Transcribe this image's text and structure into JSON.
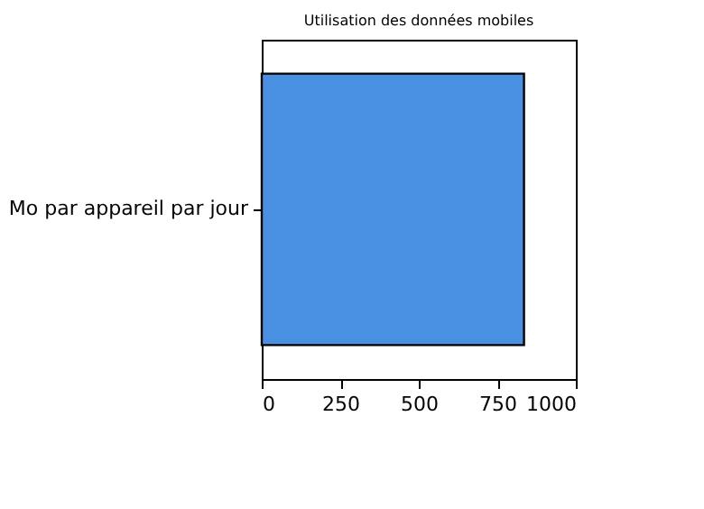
{
  "chart_data": {
    "type": "bar",
    "orientation": "horizontal",
    "title": "Utilisation des données mobiles",
    "categories": [
      "Mo par appareil par jour"
    ],
    "values": [
      835
    ],
    "color": "#4a90e2",
    "xlim": [
      0,
      1000
    ],
    "xticks": [
      0,
      250,
      500,
      750,
      1000
    ],
    "grid": false
  }
}
